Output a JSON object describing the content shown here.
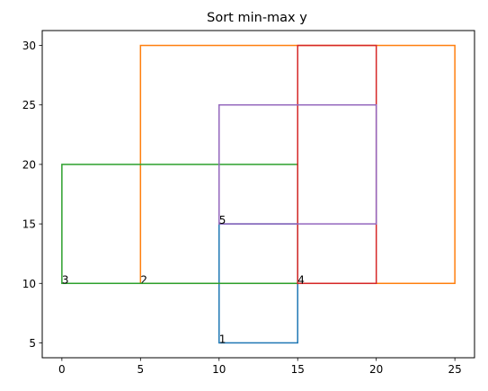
{
  "chart_data": {
    "type": "rectangles",
    "title": "Sort min-max y",
    "xlabel": "",
    "ylabel": "",
    "xlim": [
      -1.25,
      26.25
    ],
    "ylim": [
      3.75,
      31.25
    ],
    "x_ticks": [
      0,
      5,
      10,
      15,
      20,
      25
    ],
    "y_ticks": [
      5,
      10,
      15,
      20,
      25,
      30
    ],
    "grid": false,
    "rectangles": [
      {
        "label": "1",
        "x_min": 10,
        "x_max": 15,
        "y_min": 5,
        "y_max": 15,
        "color": "#1f77b4"
      },
      {
        "label": "2",
        "x_min": 5,
        "x_max": 25,
        "y_min": 10,
        "y_max": 30,
        "color": "#ff7f0e"
      },
      {
        "label": "3",
        "x_min": 0,
        "x_max": 15,
        "y_min": 10,
        "y_max": 20,
        "color": "#2ca02c"
      },
      {
        "label": "4",
        "x_min": 15,
        "x_max": 20,
        "y_min": 10,
        "y_max": 30,
        "color": "#d62728"
      },
      {
        "label": "5",
        "x_min": 10,
        "x_max": 20,
        "y_min": 15,
        "y_max": 25,
        "color": "#9467bd"
      }
    ]
  }
}
